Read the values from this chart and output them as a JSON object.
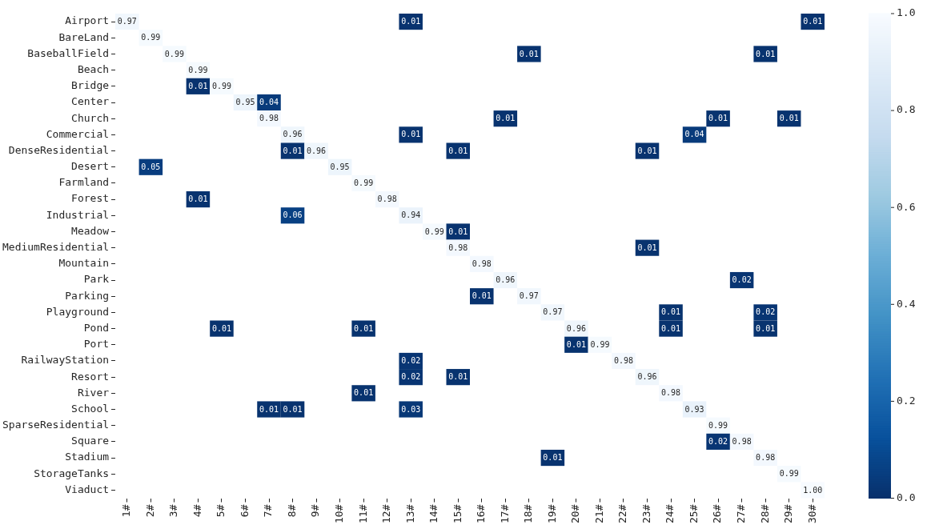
{
  "chart_data": {
    "type": "heatmap",
    "categories": [
      "1#",
      "2#",
      "3#",
      "4#",
      "5#",
      "6#",
      "7#",
      "8#",
      "9#",
      "10#",
      "11#",
      "12#",
      "13#",
      "14#",
      "15#",
      "16#",
      "17#",
      "18#",
      "19#",
      "20#",
      "21#",
      "22#",
      "23#",
      "24#",
      "25#",
      "26#",
      "27#",
      "28#",
      "29#",
      "30#"
    ],
    "y_categories": [
      "Airport",
      "BareLand",
      "BaseballField",
      "Beach",
      "Bridge",
      "Center",
      "Church",
      "Commercial",
      "DenseResidential",
      "Desert",
      "Farmland",
      "Forest",
      "Industrial",
      "Meadow",
      "MediumResidential",
      "Mountain",
      "Park",
      "Parking",
      "Playground",
      "Pond",
      "Port",
      "RailwayStation",
      "Resort",
      "River",
      "School",
      "SparseResidential",
      "Square",
      "Stadium",
      "StorageTanks",
      "Viaduct"
    ],
    "cells": [
      [
        0.97,
        null,
        null,
        null,
        null,
        null,
        null,
        null,
        null,
        null,
        null,
        null,
        0.01,
        null,
        null,
        null,
        null,
        null,
        null,
        null,
        null,
        null,
        null,
        null,
        null,
        null,
        null,
        null,
        null,
        0.01
      ],
      [
        null,
        0.99,
        null,
        null,
        null,
        null,
        null,
        null,
        null,
        null,
        null,
        null,
        null,
        null,
        null,
        null,
        null,
        null,
        null,
        null,
        null,
        null,
        null,
        null,
        null,
        null,
        null,
        null,
        null,
        null
      ],
      [
        null,
        null,
        0.99,
        null,
        null,
        null,
        null,
        null,
        null,
        null,
        null,
        null,
        null,
        null,
        null,
        null,
        null,
        0.01,
        null,
        null,
        null,
        null,
        null,
        null,
        null,
        null,
        null,
        0.01,
        null,
        null
      ],
      [
        null,
        null,
        null,
        0.99,
        null,
        null,
        null,
        null,
        null,
        null,
        null,
        null,
        null,
        null,
        null,
        null,
        null,
        null,
        null,
        null,
        null,
        null,
        null,
        null,
        null,
        null,
        null,
        null,
        null,
        null
      ],
      [
        null,
        null,
        null,
        0.01,
        0.99,
        null,
        null,
        null,
        null,
        null,
        null,
        null,
        null,
        null,
        null,
        null,
        null,
        null,
        null,
        null,
        null,
        null,
        null,
        null,
        null,
        null,
        null,
        null,
        null,
        null
      ],
      [
        null,
        null,
        null,
        null,
        null,
        0.95,
        0.04,
        null,
        null,
        null,
        null,
        null,
        null,
        null,
        null,
        null,
        null,
        null,
        null,
        null,
        null,
        null,
        null,
        null,
        null,
        null,
        null,
        null,
        null,
        null
      ],
      [
        null,
        null,
        null,
        null,
        null,
        null,
        0.98,
        null,
        null,
        null,
        null,
        null,
        null,
        null,
        null,
        null,
        0.01,
        null,
        null,
        null,
        null,
        null,
        null,
        null,
        null,
        0.01,
        null,
        null,
        0.01,
        null
      ],
      [
        null,
        null,
        null,
        null,
        null,
        null,
        null,
        0.96,
        null,
        null,
        null,
        null,
        0.01,
        null,
        null,
        null,
        null,
        null,
        null,
        null,
        null,
        null,
        null,
        null,
        0.04,
        null,
        null,
        null,
        null,
        null
      ],
      [
        null,
        null,
        null,
        null,
        null,
        null,
        null,
        0.01,
        0.96,
        null,
        null,
        null,
        null,
        null,
        0.01,
        null,
        null,
        null,
        null,
        null,
        null,
        null,
        0.01,
        null,
        null,
        null,
        null,
        null,
        null,
        null
      ],
      [
        null,
        0.05,
        null,
        null,
        null,
        null,
        null,
        null,
        null,
        0.95,
        null,
        null,
        null,
        null,
        null,
        null,
        null,
        null,
        null,
        null,
        null,
        null,
        null,
        null,
        null,
        null,
        null,
        null,
        null,
        null
      ],
      [
        null,
        null,
        null,
        null,
        null,
        null,
        null,
        null,
        null,
        null,
        0.99,
        null,
        null,
        null,
        null,
        null,
        null,
        null,
        null,
        null,
        null,
        null,
        null,
        null,
        null,
        null,
        null,
        null,
        null,
        null
      ],
      [
        null,
        null,
        null,
        0.01,
        null,
        null,
        null,
        null,
        null,
        null,
        null,
        0.98,
        null,
        null,
        null,
        null,
        null,
        null,
        null,
        null,
        null,
        null,
        null,
        null,
        null,
        null,
        null,
        null,
        null,
        null
      ],
      [
        null,
        null,
        null,
        null,
        null,
        null,
        null,
        0.06,
        null,
        null,
        null,
        null,
        0.94,
        null,
        null,
        null,
        null,
        null,
        null,
        null,
        null,
        null,
        null,
        null,
        null,
        null,
        null,
        null,
        null,
        null
      ],
      [
        null,
        null,
        null,
        null,
        null,
        null,
        null,
        null,
        null,
        null,
        null,
        null,
        null,
        0.99,
        0.01,
        null,
        null,
        null,
        null,
        null,
        null,
        null,
        null,
        null,
        null,
        null,
        null,
        null,
        null,
        null
      ],
      [
        null,
        null,
        null,
        null,
        null,
        null,
        null,
        null,
        null,
        null,
        null,
        null,
        null,
        null,
        0.98,
        null,
        null,
        null,
        null,
        null,
        null,
        null,
        0.01,
        null,
        null,
        null,
        null,
        null,
        null,
        null
      ],
      [
        null,
        null,
        null,
        null,
        null,
        null,
        null,
        null,
        null,
        null,
        null,
        null,
        null,
        null,
        null,
        0.98,
        null,
        null,
        null,
        null,
        null,
        null,
        null,
        null,
        null,
        null,
        null,
        null,
        null,
        null
      ],
      [
        null,
        null,
        null,
        null,
        null,
        null,
        null,
        null,
        null,
        null,
        null,
        null,
        null,
        null,
        null,
        null,
        0.96,
        null,
        null,
        null,
        null,
        null,
        null,
        null,
        null,
        null,
        0.02,
        null,
        null,
        null
      ],
      [
        null,
        null,
        null,
        null,
        null,
        null,
        null,
        null,
        null,
        null,
        null,
        null,
        null,
        null,
        null,
        0.01,
        null,
        0.97,
        null,
        null,
        null,
        null,
        null,
        null,
        null,
        null,
        null,
        null,
        null,
        null
      ],
      [
        null,
        null,
        null,
        null,
        null,
        null,
        null,
        null,
        null,
        null,
        null,
        null,
        null,
        null,
        null,
        null,
        null,
        null,
        0.97,
        null,
        null,
        null,
        null,
        0.01,
        null,
        null,
        null,
        0.02,
        null,
        null
      ],
      [
        null,
        null,
        null,
        null,
        0.01,
        null,
        null,
        null,
        null,
        null,
        0.01,
        null,
        null,
        null,
        null,
        null,
        null,
        null,
        null,
        0.96,
        null,
        null,
        null,
        0.01,
        null,
        null,
        null,
        0.01,
        null,
        null
      ],
      [
        null,
        null,
        null,
        null,
        null,
        null,
        null,
        null,
        null,
        null,
        null,
        null,
        null,
        null,
        null,
        null,
        null,
        null,
        null,
        0.01,
        0.99,
        null,
        null,
        null,
        null,
        null,
        null,
        null,
        null,
        null
      ],
      [
        null,
        null,
        null,
        null,
        null,
        null,
        null,
        null,
        null,
        null,
        null,
        null,
        0.02,
        null,
        null,
        null,
        null,
        null,
        null,
        null,
        null,
        0.98,
        null,
        null,
        null,
        null,
        null,
        null,
        null,
        null
      ],
      [
        null,
        null,
        null,
        null,
        null,
        null,
        null,
        null,
        null,
        null,
        null,
        null,
        0.02,
        null,
        0.01,
        null,
        null,
        null,
        null,
        null,
        null,
        null,
        0.96,
        null,
        null,
        null,
        null,
        null,
        null,
        null
      ],
      [
        null,
        null,
        null,
        null,
        null,
        null,
        null,
        null,
        null,
        null,
        0.01,
        null,
        null,
        null,
        null,
        null,
        null,
        null,
        null,
        null,
        null,
        null,
        null,
        0.98,
        null,
        null,
        null,
        null,
        null,
        null
      ],
      [
        null,
        null,
        null,
        null,
        null,
        null,
        0.01,
        0.01,
        null,
        null,
        null,
        null,
        0.03,
        null,
        null,
        null,
        null,
        null,
        null,
        null,
        null,
        null,
        null,
        null,
        0.93,
        null,
        null,
        null,
        null,
        null
      ],
      [
        null,
        null,
        null,
        null,
        null,
        null,
        null,
        null,
        null,
        null,
        null,
        null,
        null,
        null,
        null,
        null,
        null,
        null,
        null,
        null,
        null,
        null,
        null,
        null,
        null,
        0.99,
        null,
        null,
        null,
        null
      ],
      [
        null,
        null,
        null,
        null,
        null,
        null,
        null,
        null,
        null,
        null,
        null,
        null,
        null,
        null,
        null,
        null,
        null,
        null,
        null,
        null,
        null,
        null,
        null,
        null,
        null,
        0.02,
        0.98,
        null,
        null,
        null
      ],
      [
        null,
        null,
        null,
        null,
        null,
        null,
        null,
        null,
        null,
        null,
        null,
        null,
        null,
        null,
        null,
        null,
        null,
        null,
        0.01,
        null,
        null,
        null,
        null,
        null,
        null,
        null,
        null,
        0.98,
        null,
        null
      ],
      [
        null,
        null,
        null,
        null,
        null,
        null,
        null,
        null,
        null,
        null,
        null,
        null,
        null,
        null,
        null,
        null,
        null,
        null,
        null,
        null,
        null,
        null,
        null,
        null,
        null,
        null,
        null,
        null,
        0.99,
        null
      ],
      [
        null,
        null,
        null,
        null,
        null,
        null,
        null,
        null,
        null,
        null,
        null,
        null,
        null,
        null,
        null,
        null,
        null,
        null,
        null,
        null,
        null,
        null,
        null,
        null,
        null,
        null,
        null,
        null,
        null,
        1.0
      ]
    ],
    "cell_labels": [
      [
        "0.97",
        null,
        null,
        null,
        null,
        null,
        null,
        null,
        null,
        null,
        null,
        null,
        "0.01",
        null,
        null,
        null,
        null,
        null,
        null,
        null,
        null,
        null,
        null,
        null,
        null,
        null,
        null,
        null,
        null,
        "0.01"
      ],
      [
        null,
        "0.99",
        null,
        null,
        null,
        null,
        null,
        null,
        null,
        null,
        null,
        null,
        null,
        null,
        null,
        null,
        null,
        null,
        null,
        null,
        null,
        null,
        null,
        null,
        null,
        null,
        null,
        null,
        null,
        null
      ],
      [
        null,
        null,
        "0.99",
        null,
        null,
        null,
        null,
        null,
        null,
        null,
        null,
        null,
        null,
        null,
        null,
        null,
        null,
        "0.01",
        null,
        null,
        null,
        null,
        null,
        null,
        null,
        null,
        null,
        "0.01",
        null,
        null
      ],
      [
        null,
        null,
        null,
        "0.99",
        null,
        null,
        null,
        null,
        null,
        null,
        null,
        null,
        null,
        null,
        null,
        null,
        null,
        null,
        null,
        null,
        null,
        null,
        null,
        null,
        null,
        null,
        null,
        null,
        null,
        null
      ],
      [
        null,
        null,
        null,
        "0.01",
        "0.99",
        null,
        null,
        null,
        null,
        null,
        null,
        null,
        null,
        null,
        null,
        null,
        null,
        null,
        null,
        null,
        null,
        null,
        null,
        null,
        null,
        null,
        null,
        null,
        null,
        null
      ],
      [
        null,
        null,
        null,
        null,
        null,
        "0.95",
        "0.04",
        null,
        null,
        null,
        null,
        null,
        null,
        null,
        null,
        null,
        null,
        null,
        null,
        null,
        null,
        null,
        null,
        null,
        null,
        null,
        null,
        null,
        null,
        null
      ],
      [
        null,
        null,
        null,
        null,
        null,
        null,
        "0.98",
        null,
        null,
        null,
        null,
        null,
        null,
        null,
        null,
        null,
        "0.01",
        null,
        null,
        null,
        null,
        null,
        null,
        null,
        null,
        "0.01",
        null,
        null,
        "0.01",
        null
      ],
      [
        null,
        null,
        null,
        null,
        null,
        null,
        null,
        "0.96",
        null,
        null,
        null,
        null,
        "0.01",
        null,
        null,
        null,
        null,
        null,
        null,
        null,
        null,
        null,
        null,
        null,
        "0.04",
        null,
        null,
        null,
        null,
        null
      ],
      [
        null,
        null,
        null,
        null,
        null,
        null,
        null,
        "0.01",
        "0.96",
        null,
        null,
        null,
        null,
        null,
        "0.01",
        null,
        null,
        null,
        null,
        null,
        null,
        null,
        "0.01",
        null,
        null,
        null,
        null,
        null,
        null,
        null
      ],
      [
        null,
        "0.05",
        null,
        null,
        null,
        null,
        null,
        null,
        null,
        "0.95",
        null,
        null,
        null,
        null,
        null,
        null,
        null,
        null,
        null,
        null,
        null,
        null,
        null,
        null,
        null,
        null,
        null,
        null,
        null,
        null
      ],
      [
        null,
        null,
        null,
        null,
        null,
        null,
        null,
        null,
        null,
        null,
        "0.99",
        null,
        null,
        null,
        null,
        null,
        null,
        null,
        null,
        null,
        null,
        null,
        null,
        null,
        null,
        null,
        null,
        null,
        null,
        null
      ],
      [
        null,
        null,
        null,
        "0.01",
        null,
        null,
        null,
        null,
        null,
        null,
        null,
        "0.98",
        null,
        null,
        null,
        null,
        null,
        null,
        null,
        null,
        null,
        null,
        null,
        null,
        null,
        null,
        null,
        null,
        null,
        null
      ],
      [
        null,
        null,
        null,
        null,
        null,
        null,
        null,
        "0.06",
        null,
        null,
        null,
        null,
        "0.94",
        null,
        null,
        null,
        null,
        null,
        null,
        null,
        null,
        null,
        null,
        null,
        null,
        null,
        null,
        null,
        null,
        null
      ],
      [
        null,
        null,
        null,
        null,
        null,
        null,
        null,
        null,
        null,
        null,
        null,
        null,
        null,
        "0.99",
        "0.01",
        null,
        null,
        null,
        null,
        null,
        null,
        null,
        null,
        null,
        null,
        null,
        null,
        null,
        null,
        null
      ],
      [
        null,
        null,
        null,
        null,
        null,
        null,
        null,
        null,
        null,
        null,
        null,
        null,
        null,
        null,
        "0.98",
        null,
        null,
        null,
        null,
        null,
        null,
        null,
        "0.01",
        null,
        null,
        null,
        null,
        null,
        null,
        null
      ],
      [
        null,
        null,
        null,
        null,
        null,
        null,
        null,
        null,
        null,
        null,
        null,
        null,
        null,
        null,
        null,
        "0.98",
        null,
        null,
        null,
        null,
        null,
        null,
        null,
        null,
        null,
        null,
        null,
        null,
        null,
        null
      ],
      [
        null,
        null,
        null,
        null,
        null,
        null,
        null,
        null,
        null,
        null,
        null,
        null,
        null,
        null,
        null,
        null,
        "0.96",
        null,
        null,
        null,
        null,
        null,
        null,
        null,
        null,
        null,
        "0.02",
        null,
        null,
        null
      ],
      [
        null,
        null,
        null,
        null,
        null,
        null,
        null,
        null,
        null,
        null,
        null,
        null,
        null,
        null,
        null,
        "0.01",
        null,
        "0.97",
        null,
        null,
        null,
        null,
        null,
        null,
        null,
        null,
        null,
        null,
        null,
        null
      ],
      [
        null,
        null,
        null,
        null,
        null,
        null,
        null,
        null,
        null,
        null,
        null,
        null,
        null,
        null,
        null,
        null,
        null,
        null,
        "0.97",
        null,
        null,
        null,
        null,
        "0.01",
        null,
        null,
        null,
        "0.02",
        null,
        null
      ],
      [
        null,
        null,
        null,
        null,
        "0.01",
        null,
        null,
        null,
        null,
        null,
        "0.01",
        null,
        null,
        null,
        null,
        null,
        null,
        null,
        null,
        "0.96",
        null,
        null,
        null,
        "0.01",
        null,
        null,
        null,
        "0.01",
        null,
        null
      ],
      [
        null,
        null,
        null,
        null,
        null,
        null,
        null,
        null,
        null,
        null,
        null,
        null,
        null,
        null,
        null,
        null,
        null,
        null,
        null,
        "0.01",
        "0.99",
        null,
        null,
        null,
        null,
        null,
        null,
        null,
        null,
        null
      ],
      [
        null,
        null,
        null,
        null,
        null,
        null,
        null,
        null,
        null,
        null,
        null,
        null,
        "0.02",
        null,
        null,
        null,
        null,
        null,
        null,
        null,
        null,
        "0.98",
        null,
        null,
        null,
        null,
        null,
        null,
        null,
        null
      ],
      [
        null,
        null,
        null,
        null,
        null,
        null,
        null,
        null,
        null,
        null,
        null,
        null,
        "0.02",
        null,
        "0.01",
        null,
        null,
        null,
        null,
        null,
        null,
        null,
        "0.96",
        null,
        null,
        null,
        null,
        null,
        null,
        null
      ],
      [
        null,
        null,
        null,
        null,
        null,
        null,
        null,
        null,
        null,
        null,
        "0.01",
        null,
        null,
        null,
        null,
        null,
        null,
        null,
        null,
        null,
        null,
        null,
        null,
        "0.98",
        null,
        null,
        null,
        null,
        null,
        null
      ],
      [
        null,
        null,
        null,
        null,
        null,
        null,
        "0.01",
        "0.01",
        null,
        null,
        null,
        null,
        "0.03",
        null,
        null,
        null,
        null,
        null,
        null,
        null,
        null,
        null,
        null,
        null,
        "0.93",
        null,
        null,
        null,
        null,
        null
      ],
      [
        null,
        null,
        null,
        null,
        null,
        null,
        null,
        null,
        null,
        null,
        null,
        null,
        null,
        null,
        null,
        null,
        null,
        null,
        null,
        null,
        null,
        null,
        null,
        null,
        null,
        "0.99",
        null,
        null,
        null,
        null
      ],
      [
        null,
        null,
        null,
        null,
        null,
        null,
        null,
        null,
        null,
        null,
        null,
        null,
        null,
        null,
        null,
        null,
        null,
        null,
        null,
        null,
        null,
        null,
        null,
        null,
        null,
        "0.02",
        "0.98",
        null,
        null,
        null
      ],
      [
        null,
        null,
        null,
        null,
        null,
        null,
        null,
        null,
        null,
        null,
        null,
        null,
        null,
        null,
        null,
        null,
        null,
        null,
        "0.01",
        null,
        null,
        null,
        null,
        null,
        null,
        null,
        null,
        "0.98",
        null,
        null
      ],
      [
        null,
        null,
        null,
        null,
        null,
        null,
        null,
        null,
        null,
        null,
        null,
        null,
        null,
        null,
        null,
        null,
        null,
        null,
        null,
        null,
        null,
        null,
        null,
        null,
        null,
        null,
        null,
        null,
        "0.99",
        null
      ],
      [
        null,
        null,
        null,
        null,
        null,
        null,
        null,
        null,
        null,
        null,
        null,
        null,
        null,
        null,
        null,
        null,
        null,
        null,
        null,
        null,
        null,
        null,
        null,
        null,
        null,
        null,
        null,
        null,
        null,
        "1.00"
      ]
    ],
    "clim": [
      0,
      1
    ],
    "cticks": [
      {
        "value": 0,
        "label": "0.0"
      },
      {
        "value": 0.2,
        "label": "0.2"
      },
      {
        "value": 0.4,
        "label": "0.4"
      },
      {
        "value": 0.6,
        "label": "0.6"
      },
      {
        "value": 0.8,
        "label": "0.8"
      },
      {
        "value": 1,
        "label": "1.0"
      }
    ]
  }
}
